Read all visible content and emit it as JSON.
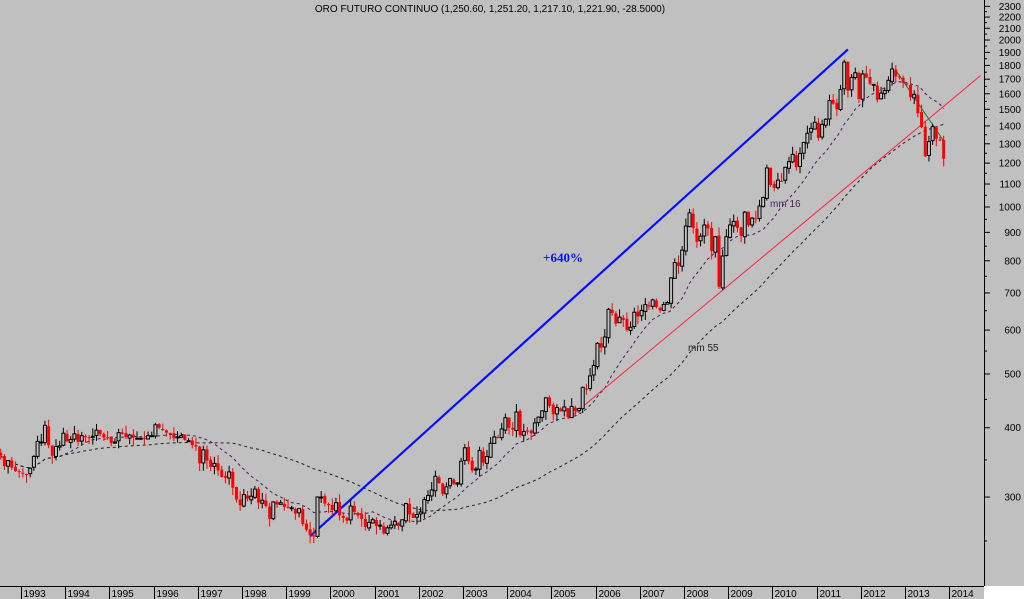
{
  "chart_data": {
    "type": "candlestick",
    "title": "ORO FUTURO CONTINUO (1,250.60, 1,251.20, 1,217.10, 1,221.90, -28.5000)",
    "y_scale": "log",
    "ylim": [
      240,
      2350
    ],
    "y_ticks": [
      2300,
      2200,
      2100,
      2000,
      1900,
      1800,
      1700,
      1600,
      1500,
      1400,
      1300,
      1200,
      1100,
      1000,
      900,
      800,
      700,
      600,
      500,
      400,
      300
    ],
    "x_ticks": [
      "1993",
      "1994",
      "1995",
      "1996",
      "1997",
      "1998",
      "1999",
      "2000",
      "2001",
      "2002",
      "2003",
      "2004",
      "2005",
      "2006",
      "2007",
      "2008",
      "2009",
      "2010",
      "2011",
      "2012",
      "2013",
      "2014"
    ],
    "start_month": "1992-07",
    "frequency": "monthly",
    "closes": [
      357,
      341,
      349,
      339,
      334,
      333,
      331,
      329,
      338,
      355,
      378,
      377,
      404,
      372,
      356,
      370,
      371,
      391,
      378,
      381,
      390,
      377,
      387,
      386,
      384,
      386,
      396,
      390,
      384,
      384,
      375,
      377,
      392,
      390,
      385,
      388,
      384,
      383,
      383,
      383,
      387,
      387,
      405,
      400,
      396,
      392,
      391,
      383,
      385,
      387,
      380,
      379,
      372,
      370,
      345,
      365,
      349,
      340,
      345,
      335,
      326,
      325,
      333,
      312,
      297,
      290,
      303,
      298,
      301,
      310,
      293,
      296,
      289,
      274,
      294,
      291,
      293,
      288,
      287,
      287,
      280,
      286,
      268,
      262,
      256,
      255,
      300,
      300,
      292,
      290,
      284,
      293,
      278,
      275,
      272,
      289,
      282,
      278,
      274,
      265,
      270,
      273,
      266,
      267,
      258,
      264,
      267,
      271,
      266,
      273,
      292,
      279,
      275,
      279,
      282,
      297,
      302,
      309,
      327,
      318,
      304,
      313,
      324,
      317,
      318,
      348,
      368,
      348,
      335,
      337,
      364,
      346,
      355,
      375,
      385,
      384,
      398,
      417,
      400,
      397,
      427,
      388,
      394,
      394,
      391,
      408,
      418,
      429,
      453,
      438,
      423,
      435,
      428,
      436,
      418,
      437,
      429,
      433,
      473,
      470,
      496,
      518,
      568,
      558,
      583,
      654,
      644,
      616,
      633,
      626,
      600,
      607,
      646,
      635,
      651,
      667,
      663,
      680,
      660,
      651,
      667,
      673,
      745,
      794,
      783,
      836,
      924,
      976,
      917,
      866,
      886,
      928,
      915,
      833,
      884,
      718,
      816,
      884,
      928,
      942,
      917,
      887,
      979,
      927,
      955,
      953,
      1004,
      1040,
      1176,
      1096,
      1082,
      1118,
      1114,
      1179,
      1207,
      1244,
      1180,
      1248,
      1307,
      1358,
      1386,
      1421,
      1332,
      1409,
      1439,
      1556,
      1536,
      1500,
      1628,
      1825,
      1620,
      1713,
      1746,
      1566,
      1737,
      1710,
      1669,
      1664,
      1560,
      1604,
      1622,
      1692,
      1773,
      1719,
      1712,
      1676,
      1663,
      1578,
      1596,
      1476,
      1393,
      1234,
      1312,
      1396,
      1327,
      1323,
      1222
    ],
    "moving_averages": [
      {
        "name": "mm 16",
        "period": 16,
        "color": "#4b1a5a"
      },
      {
        "name": "mm 55",
        "period": 55,
        "color": "#202020"
      }
    ],
    "annotations": {
      "gain_label": "+640%",
      "blue_trendline": {
        "from": [
          "1999-07",
          255
        ],
        "to": [
          "2011-09",
          1923
        ]
      },
      "red_trendline": {
        "from": [
          "2005-05",
          415
        ],
        "to": [
          "2014-09",
          1725
        ]
      }
    },
    "colors": {
      "up": "#c0c0c0",
      "down": "#ff0000",
      "outline": "#000000",
      "blue": "#0010ff",
      "red_line": "#ff2040",
      "green_line": "#008040",
      "bg": "#c0c0c0"
    }
  }
}
